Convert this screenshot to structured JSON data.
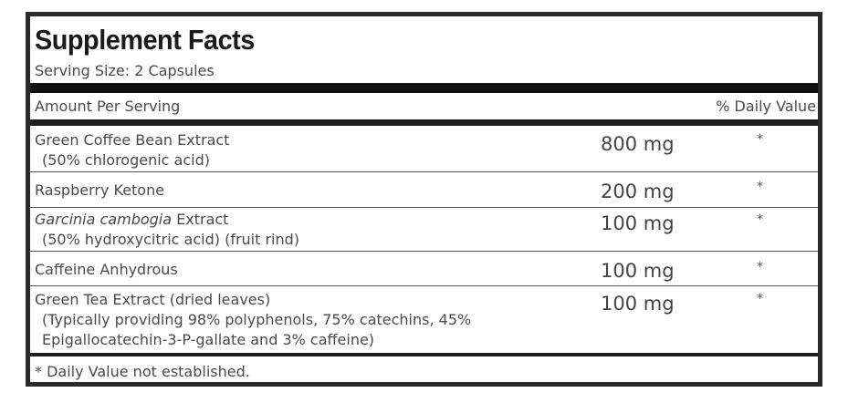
{
  "title": "Supplement Facts",
  "serving_size": "Serving Size: 2 Capsules",
  "header": {
    "amount_per_serving": "Amount Per Serving",
    "daily_value": "% Daily Value"
  },
  "rows": [
    {
      "name": "Green Coffee Bean Extract",
      "sub": "(50% chlorogenic acid)",
      "amount": "800 mg",
      "dv": "*"
    },
    {
      "name": "Raspberry Ketone",
      "sub": "",
      "amount": "200 mg",
      "dv": "*"
    },
    {
      "name_italic": "Garcinia cambogia",
      "name_rest": " Extract",
      "sub": "(50% hydroxycitric acid) (fruit rind)",
      "amount": "100 mg",
      "dv": "*"
    },
    {
      "name": "Caffeine Anhydrous",
      "sub": "",
      "amount": "100 mg",
      "dv": "*"
    },
    {
      "name": "Green Tea Extract (dried leaves)",
      "sub": "(Typically providing 98% polyphenols, 75% catechins, 45%",
      "sub2": "Epigallocatechin-3-P-gallate and 3% caffeine)",
      "amount": "100 mg",
      "dv": "*"
    }
  ],
  "footnote": "* Daily Value not established."
}
